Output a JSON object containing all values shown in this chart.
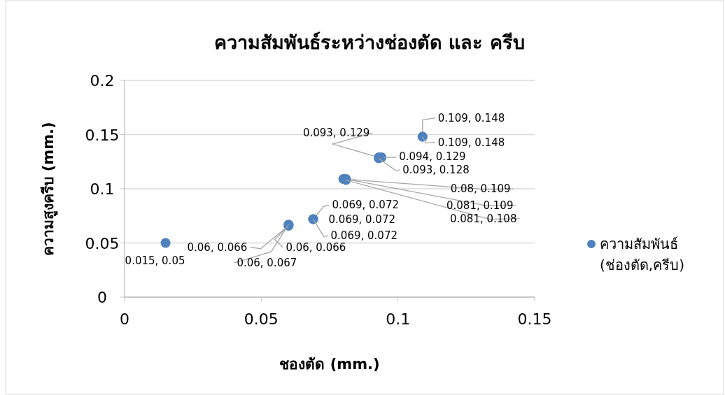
{
  "chart_data": {
    "type": "scatter",
    "title": "ความสัมพันธ์ระหว่างช่องตัด และ ครีบ",
    "xlabel": "ชองตัด (mm.)",
    "ylabel": "ความสูงครีบ (mm.)",
    "series": [
      {
        "name": "ความสัมพันธ์ (ช่องตัด,ครีบ)",
        "color": "#4f81bd",
        "x": [
          0.015,
          0.06,
          0.06,
          0.06,
          0.069,
          0.069,
          0.069,
          0.08,
          0.081,
          0.081,
          0.093,
          0.094,
          0.093,
          0.109,
          0.109
        ],
        "values": [
          0.05,
          0.066,
          0.066,
          0.067,
          0.072,
          0.072,
          0.072,
          0.109,
          0.109,
          0.108,
          0.129,
          0.129,
          0.128,
          0.148,
          0.148
        ],
        "value_labels": [
          "0.015, 0.05",
          "0.06, 0.066",
          "0.06, 0.066",
          "0.06, 0.067",
          "0.069, 0.072",
          "0.069, 0.072",
          "0.069, 0.072",
          "0.08, 0.109",
          "0.081, 0.109",
          "0.081, 0.108",
          "0.093, 0.129",
          "0.094, 0.129",
          "0.093, 0.128",
          "0.109, 0.148",
          "0.109, 0.148"
        ]
      }
    ],
    "xlim": [
      0,
      0.15
    ],
    "xticks": [
      0,
      0.05,
      0.1,
      0.15
    ],
    "ylim": [
      0,
      0.2
    ],
    "yticks": [
      0,
      0.05,
      0.1,
      0.15,
      0.2
    ],
    "grid": "y",
    "legend": "right",
    "marker": "circle"
  }
}
